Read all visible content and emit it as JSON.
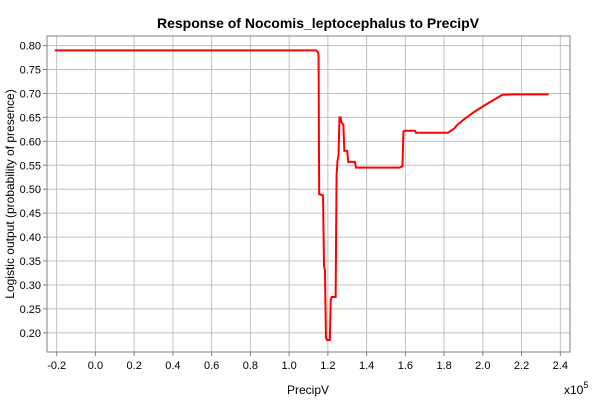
{
  "chart_data": {
    "type": "line",
    "title": "Response of Nocomis_leptocephalus to PrecipV",
    "xlabel": "PrecipV",
    "ylabel": "Logistic output (probability of presence)",
    "x_multiplier_label": "x10",
    "x_multiplier_exp": "5",
    "xlim": [
      -0.25,
      2.45
    ],
    "ylim": [
      0.16,
      0.82
    ],
    "x_ticks": [
      -0.2,
      0.0,
      0.2,
      0.4,
      0.6,
      0.8,
      1.0,
      1.2,
      1.4,
      1.6,
      1.8,
      2.0,
      2.2,
      2.4
    ],
    "x_tick_labels": [
      "-0.2",
      "0.0",
      "0.2",
      "0.4",
      "0.6",
      "0.8",
      "1.0",
      "1.2",
      "1.4",
      "1.6",
      "1.8",
      "2.0",
      "2.2",
      "2.4"
    ],
    "y_ticks": [
      0.2,
      0.25,
      0.3,
      0.35,
      0.4,
      0.45,
      0.5,
      0.55,
      0.6,
      0.65,
      0.7,
      0.75,
      0.8
    ],
    "y_tick_labels": [
      "0.20",
      "0.25",
      "0.30",
      "0.35",
      "0.40",
      "0.45",
      "0.50",
      "0.55",
      "0.60",
      "0.65",
      "0.70",
      "0.75",
      "0.80"
    ],
    "grid": true,
    "series": [
      {
        "color": "#ff0000",
        "points": [
          [
            -0.21,
            0.79
          ],
          [
            1.14,
            0.79
          ],
          [
            1.15,
            0.785
          ],
          [
            1.152,
            0.78
          ],
          [
            1.155,
            0.49
          ],
          [
            1.175,
            0.487
          ],
          [
            1.18,
            0.34
          ],
          [
            1.185,
            0.33
          ],
          [
            1.19,
            0.19
          ],
          [
            1.195,
            0.185
          ],
          [
            1.21,
            0.185
          ],
          [
            1.215,
            0.27
          ],
          [
            1.22,
            0.275
          ],
          [
            1.24,
            0.275
          ],
          [
            1.245,
            0.53
          ],
          [
            1.25,
            0.56
          ],
          [
            1.255,
            0.57
          ],
          [
            1.26,
            0.65
          ],
          [
            1.265,
            0.65
          ],
          [
            1.27,
            0.64
          ],
          [
            1.28,
            0.635
          ],
          [
            1.285,
            0.58
          ],
          [
            1.3,
            0.58
          ],
          [
            1.305,
            0.557
          ],
          [
            1.34,
            0.557
          ],
          [
            1.345,
            0.545
          ],
          [
            1.57,
            0.545
          ],
          [
            1.585,
            0.548
          ],
          [
            1.59,
            0.62
          ],
          [
            1.595,
            0.622
          ],
          [
            1.65,
            0.622
          ],
          [
            1.655,
            0.618
          ],
          [
            1.82,
            0.618
          ],
          [
            1.85,
            0.626
          ],
          [
            1.87,
            0.635
          ],
          [
            1.9,
            0.645
          ],
          [
            1.95,
            0.66
          ],
          [
            2.0,
            0.673
          ],
          [
            2.05,
            0.685
          ],
          [
            2.1,
            0.697
          ],
          [
            2.15,
            0.698
          ],
          [
            2.34,
            0.698
          ]
        ]
      }
    ]
  }
}
